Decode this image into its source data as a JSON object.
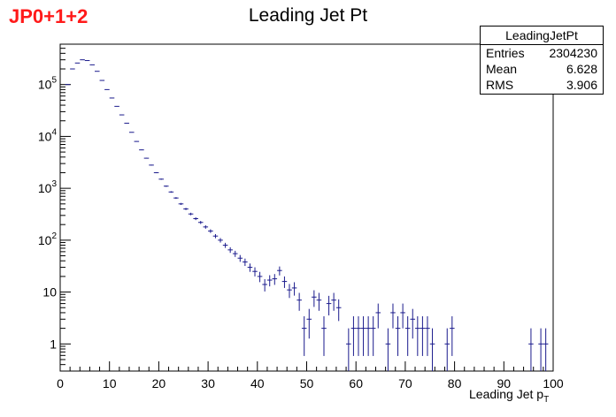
{
  "corner_label": "JP0+1+2",
  "stats": {
    "name": "LeadingJetPt",
    "rows": [
      {
        "label": "Entries",
        "value": "2304230"
      },
      {
        "label": "Mean",
        "value": "6.628"
      },
      {
        "label": "RMS",
        "value": "3.906"
      }
    ]
  },
  "colors": {
    "marker": "#1a1a8c",
    "axis": "#000000",
    "corner_label": "#ff1a1a"
  },
  "chart_data": {
    "type": "scatter",
    "title": "Leading Jet Pt",
    "xlabel_main": "Leading Jet p",
    "xlabel_sub": "T",
    "ylabel": "",
    "xlim": [
      0,
      100
    ],
    "ylim": [
      0.3,
      600000
    ],
    "y_scale": "log",
    "grid": false,
    "legend": "none",
    "x_ticks": [
      0,
      10,
      20,
      30,
      40,
      50,
      60,
      70,
      80,
      90,
      100
    ],
    "y_ticks": [
      {
        "value": 1,
        "label": "1"
      },
      {
        "value": 10,
        "label": "10"
      },
      {
        "value": 100,
        "label": "10^2"
      },
      {
        "value": 1000,
        "label": "10^3"
      },
      {
        "value": 10000,
        "label": "10^4"
      },
      {
        "value": 100000,
        "label": "10^5"
      }
    ],
    "bin_width": 1,
    "bins": [
      {
        "x": 1.5,
        "y": 100000
      },
      {
        "x": 2.5,
        "y": 200000
      },
      {
        "x": 3.5,
        "y": 260000
      },
      {
        "x": 4.5,
        "y": 300000
      },
      {
        "x": 5.5,
        "y": 290000
      },
      {
        "x": 6.5,
        "y": 240000
      },
      {
        "x": 7.5,
        "y": 180000
      },
      {
        "x": 8.5,
        "y": 120000
      },
      {
        "x": 9.5,
        "y": 80000
      },
      {
        "x": 10.5,
        "y": 55000
      },
      {
        "x": 11.5,
        "y": 38000
      },
      {
        "x": 12.5,
        "y": 26000
      },
      {
        "x": 13.5,
        "y": 18000
      },
      {
        "x": 14.5,
        "y": 12000
      },
      {
        "x": 15.5,
        "y": 8000
      },
      {
        "x": 16.5,
        "y": 5500
      },
      {
        "x": 17.5,
        "y": 3800
      },
      {
        "x": 18.5,
        "y": 2800
      },
      {
        "x": 19.5,
        "y": 2000
      },
      {
        "x": 20.5,
        "y": 1500
      },
      {
        "x": 21.5,
        "y": 1100
      },
      {
        "x": 22.5,
        "y": 850
      },
      {
        "x": 23.5,
        "y": 650
      },
      {
        "x": 24.5,
        "y": 500
      },
      {
        "x": 25.5,
        "y": 400
      },
      {
        "x": 26.5,
        "y": 320
      },
      {
        "x": 27.5,
        "y": 260
      },
      {
        "x": 28.5,
        "y": 220
      },
      {
        "x": 29.5,
        "y": 180
      },
      {
        "x": 30.5,
        "y": 150
      },
      {
        "x": 31.5,
        "y": 120
      },
      {
        "x": 32.5,
        "y": 100
      },
      {
        "x": 33.5,
        "y": 80
      },
      {
        "x": 34.5,
        "y": 65
      },
      {
        "x": 35.5,
        "y": 55
      },
      {
        "x": 36.5,
        "y": 45
      },
      {
        "x": 37.5,
        "y": 38
      },
      {
        "x": 38.5,
        "y": 30
      },
      {
        "x": 39.5,
        "y": 25
      },
      {
        "x": 40.5,
        "y": 20
      },
      {
        "x": 41.5,
        "y": 14
      },
      {
        "x": 42.5,
        "y": 17
      },
      {
        "x": 43.5,
        "y": 18
      },
      {
        "x": 44.5,
        "y": 26
      },
      {
        "x": 45.5,
        "y": 16
      },
      {
        "x": 46.5,
        "y": 11
      },
      {
        "x": 47.5,
        "y": 12
      },
      {
        "x": 48.5,
        "y": 7
      },
      {
        "x": 49.5,
        "y": 2
      },
      {
        "x": 50.5,
        "y": 3
      },
      {
        "x": 51.5,
        "y": 8
      },
      {
        "x": 52.5,
        "y": 7
      },
      {
        "x": 53.5,
        "y": 2
      },
      {
        "x": 54.5,
        "y": 6
      },
      {
        "x": 55.5,
        "y": 7
      },
      {
        "x": 56.5,
        "y": 5
      },
      {
        "x": 58.5,
        "y": 1
      },
      {
        "x": 59.5,
        "y": 2
      },
      {
        "x": 60.5,
        "y": 2
      },
      {
        "x": 61.5,
        "y": 2
      },
      {
        "x": 62.5,
        "y": 2
      },
      {
        "x": 63.5,
        "y": 2
      },
      {
        "x": 64.5,
        "y": 4
      },
      {
        "x": 66.5,
        "y": 1
      },
      {
        "x": 67.5,
        "y": 4
      },
      {
        "x": 68.5,
        "y": 2
      },
      {
        "x": 69.5,
        "y": 4
      },
      {
        "x": 70.5,
        "y": 2
      },
      {
        "x": 71.5,
        "y": 3
      },
      {
        "x": 72.5,
        "y": 2
      },
      {
        "x": 73.5,
        "y": 2
      },
      {
        "x": 74.5,
        "y": 2
      },
      {
        "x": 75.5,
        "y": 1
      },
      {
        "x": 78.5,
        "y": 1
      },
      {
        "x": 79.5,
        "y": 2
      },
      {
        "x": 95.5,
        "y": 1
      },
      {
        "x": 97.5,
        "y": 1
      },
      {
        "x": 98.5,
        "y": 1
      }
    ]
  }
}
